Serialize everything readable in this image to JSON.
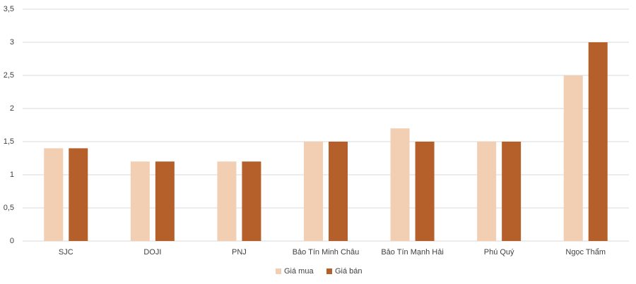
{
  "chart_data": {
    "type": "bar",
    "categories": [
      "SJC",
      "DOJI",
      "PNJ",
      "Bảo Tín Minh Châu",
      "Bảo Tín Mạnh Hải",
      "Phú Quý",
      "Ngọc Thẩm"
    ],
    "series": [
      {
        "name": "Giá mua",
        "color": "#f2cfb3",
        "values": [
          1.4,
          1.2,
          1.2,
          1.5,
          1.7,
          1.5,
          2.5
        ]
      },
      {
        "name": "Giá bán",
        "color": "#b5602b",
        "values": [
          1.4,
          1.2,
          1.2,
          1.5,
          1.5,
          1.5,
          3
        ]
      }
    ],
    "ylim": [
      0,
      3.5
    ],
    "yticks": [
      0,
      {
        "value": 0.5,
        "label": "0,5"
      },
      1,
      {
        "value": 1.5,
        "label": "1,5"
      },
      2,
      {
        "value": 2.5,
        "label": "2,5"
      },
      3,
      {
        "value": 3.5,
        "label": "3,5"
      }
    ],
    "grid": true,
    "legend": "bottom"
  }
}
